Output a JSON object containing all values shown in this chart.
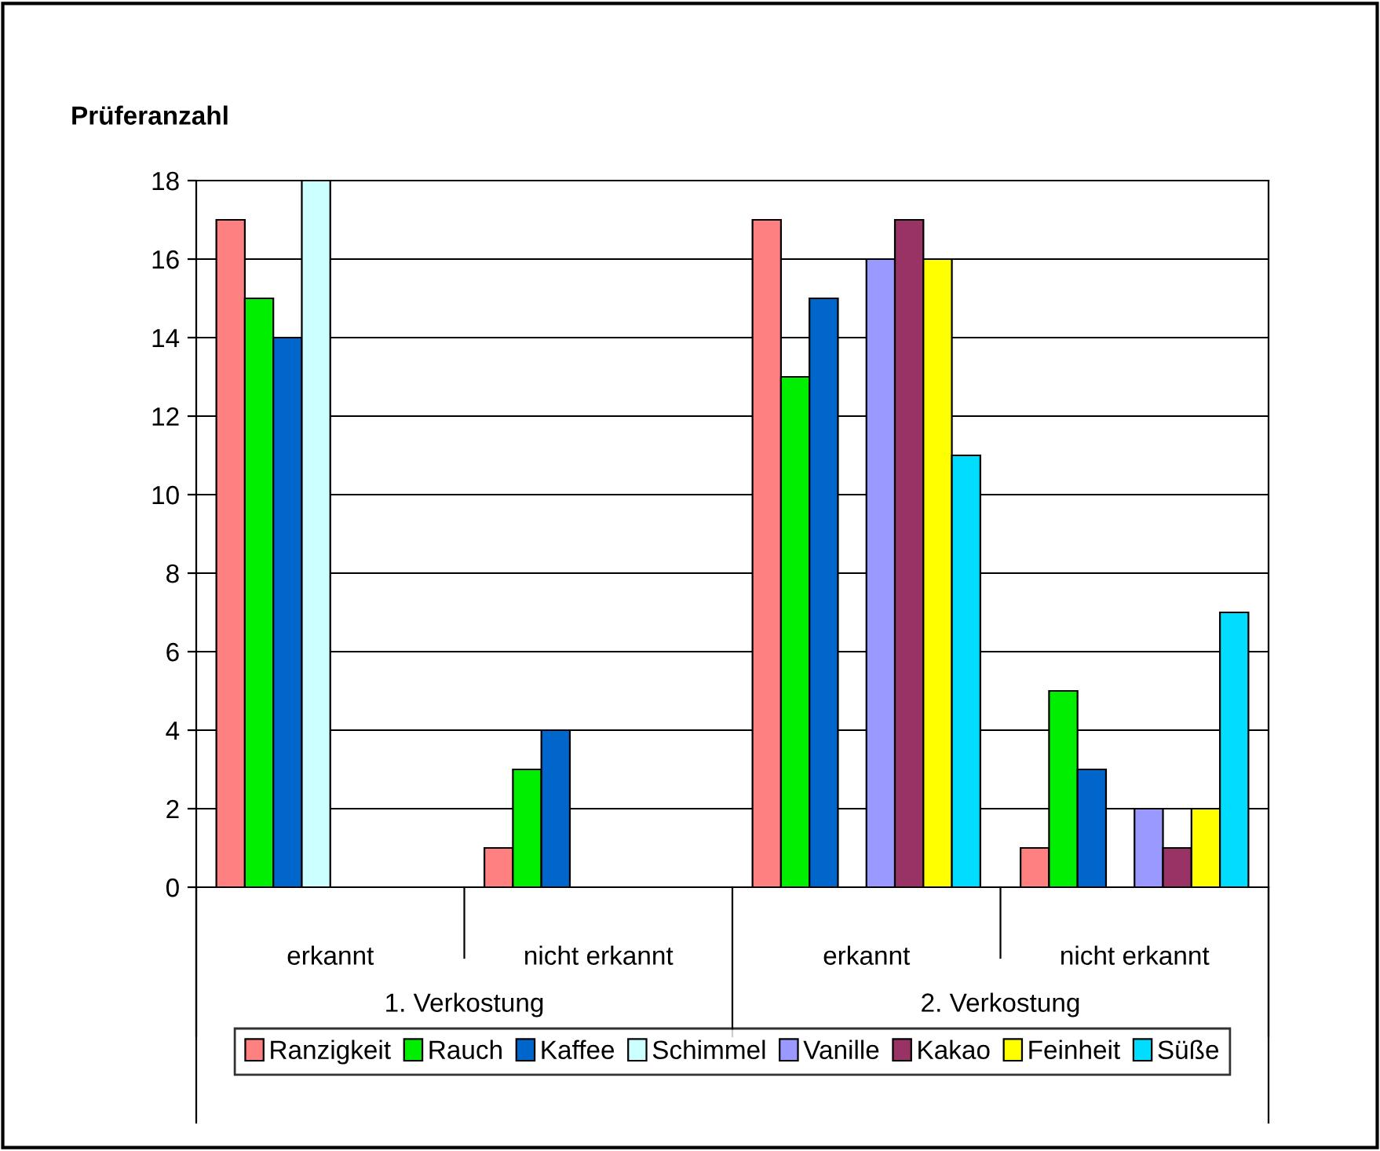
{
  "chart_data": {
    "type": "bar",
    "ylabel": "Prüferanzahl",
    "categories": [
      "erkannt",
      "nicht erkannt",
      "erkannt",
      "nicht erkannt"
    ],
    "annotations": [
      "1. Verkostung",
      "2. Verkostung"
    ],
    "series": [
      {
        "name": "Ranzigkeit",
        "color": "#ff8080",
        "values": [
          17,
          1,
          17,
          1
        ]
      },
      {
        "name": "Rauch",
        "color": "#00ee00",
        "values": [
          15,
          3,
          13,
          5
        ]
      },
      {
        "name": "Kaffee",
        "color": "#0066cc",
        "values": [
          14,
          4,
          15,
          3
        ]
      },
      {
        "name": "Schimmel",
        "color": "#ccffff",
        "values": [
          18,
          null,
          null,
          null
        ]
      },
      {
        "name": "Vanille",
        "color": "#9999ff",
        "values": [
          null,
          null,
          16,
          2
        ]
      },
      {
        "name": "Kakao",
        "color": "#993366",
        "values": [
          null,
          null,
          17,
          1
        ]
      },
      {
        "name": "Feinheit",
        "color": "#ffff00",
        "values": [
          null,
          null,
          16,
          2
        ]
      },
      {
        "name": "Süße",
        "color": "#00ddff",
        "values": [
          null,
          null,
          11,
          7
        ]
      }
    ],
    "ylim": [
      0,
      18
    ],
    "yticks": [
      0,
      2,
      4,
      6,
      8,
      10,
      12,
      14,
      16,
      18
    ],
    "grid": "y",
    "legend": "bottom"
  }
}
